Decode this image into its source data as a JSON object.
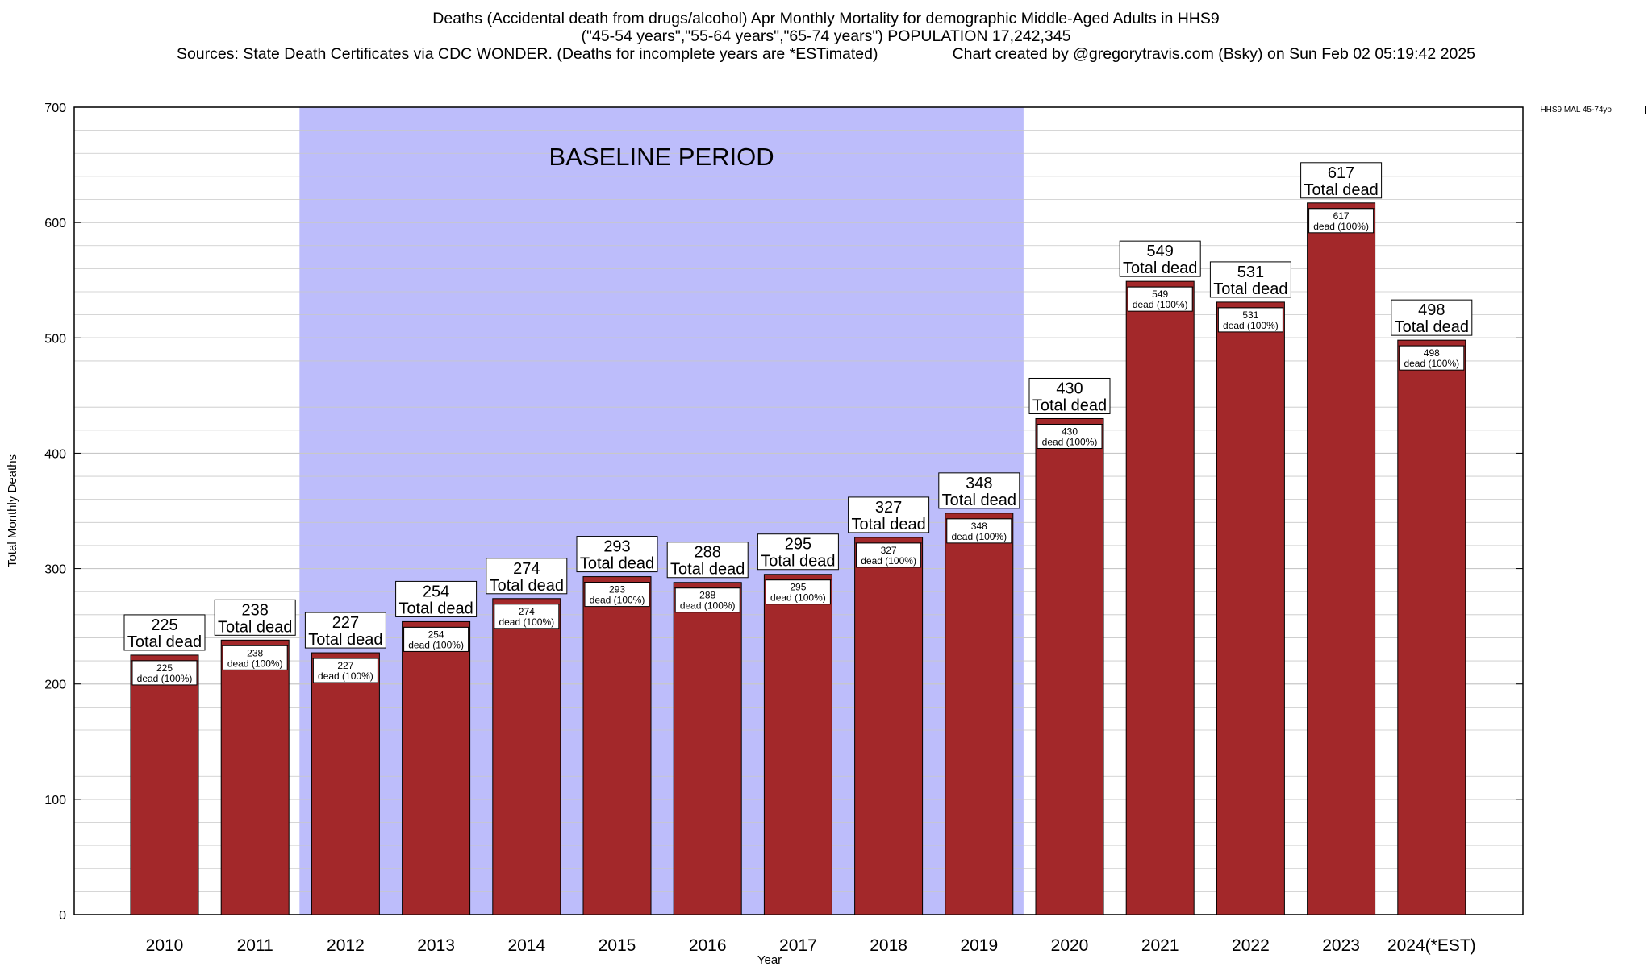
{
  "header": {
    "line1": "Deaths (Accidental death from drugs/alcohol) Apr Monthly Mortality for demographic Middle-Aged Adults in HHS9",
    "line2": "(\"45-54 years\",\"55-64 years\",\"65-74 years\") POPULATION 17,242,345",
    "line3_left": "Sources: State Death Certificates via CDC WONDER. (Deaths for incomplete years are *ESTimated)",
    "line3_right": "Chart created by @gregorytravis.com (Bsky) on Sun Feb 02 05:19:42 2025"
  },
  "legend": {
    "label": "HHS9 MAL 45-74yo"
  },
  "colors": {
    "bar": "#a3282a",
    "baseline": "#bdbdfb",
    "grid": "#c8c8c8"
  },
  "chart_data": {
    "type": "bar",
    "xlabel": "Year",
    "ylabel": "Total Monthly Deaths",
    "ylim": [
      0,
      700
    ],
    "yticks": [
      0,
      100,
      200,
      300,
      400,
      500,
      600,
      700
    ],
    "categories": [
      "2010",
      "2011",
      "2012",
      "2013",
      "2014",
      "2015",
      "2016",
      "2017",
      "2018",
      "2019",
      "2020",
      "2021",
      "2022",
      "2023",
      "2024(*EST)"
    ],
    "series": [
      {
        "name": "HHS9 MAL 45-74yo",
        "values": [
          225,
          238,
          227,
          254,
          274,
          293,
          288,
          295,
          327,
          348,
          430,
          549,
          531,
          617,
          498
        ]
      }
    ],
    "upper_label": "Total dead",
    "inner_label": "dead (100%)",
    "baseline_period": {
      "label": "BASELINE PERIOD",
      "from": "2012",
      "to": "2019"
    },
    "grid": true,
    "legend_position": "top-right"
  }
}
